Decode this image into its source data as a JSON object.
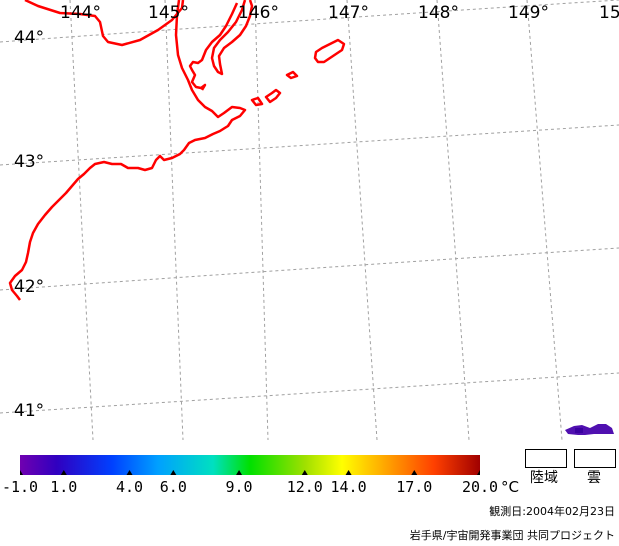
{
  "map": {
    "longitude_labels": [
      "144°",
      "145°",
      "146°",
      "147°",
      "148°",
      "149°",
      "15"
    ],
    "latitude_labels": [
      "44°",
      "43°",
      "42°",
      "41°"
    ],
    "coastline_color": "#ff0000",
    "grid_color": "#a0a0a0"
  },
  "colorbar": {
    "tick_labels": [
      "-1.0",
      "1.0",
      "4.0",
      "6.0",
      "9.0",
      "12.0",
      "14.0",
      "17.0",
      "20.0"
    ],
    "tick_values": [
      -1.0,
      1.0,
      4.0,
      6.0,
      9.0,
      12.0,
      14.0,
      17.0,
      20.0
    ],
    "range": [
      -1.0,
      20.0
    ],
    "unit": "°C",
    "stops": [
      "#7000b0",
      "#3000c0",
      "#0040ff",
      "#00a0ff",
      "#00e0c0",
      "#00e000",
      "#a0e000",
      "#ffff00",
      "#ffa000",
      "#ff4000",
      "#a00000"
    ]
  },
  "legend": {
    "land_label": "陸域",
    "cloud_label": "雲"
  },
  "observation_date": "観測日:2004年02月23日",
  "credit": "岩手県/宇宙開発事業団  共同プロジェクト"
}
